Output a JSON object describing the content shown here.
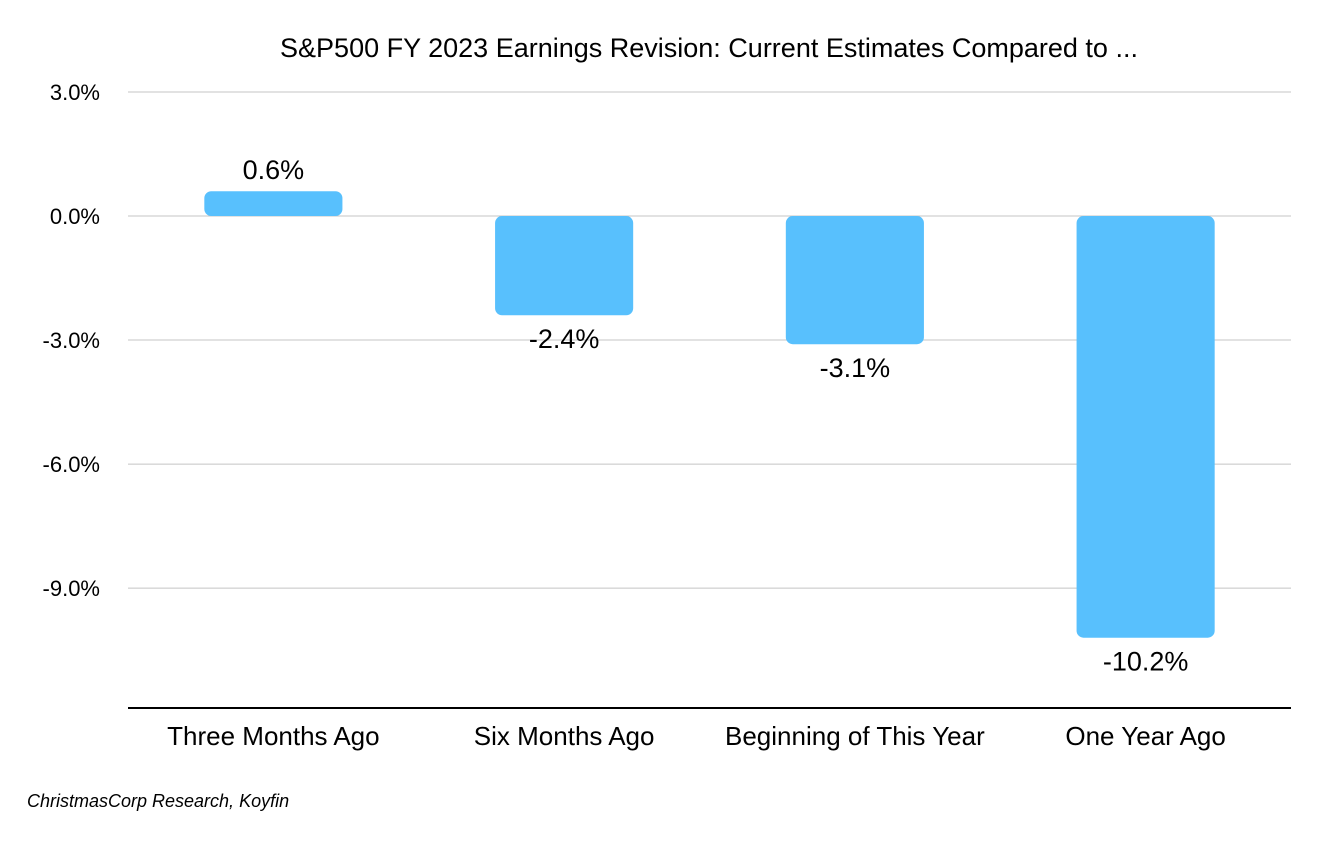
{
  "chart_data": {
    "type": "bar",
    "title": "S&P500 FY 2023 Earnings Revision: Current Estimates Compared to ...",
    "categories": [
      "Three Months Ago",
      "Six Months Ago",
      "Beginning of This Year",
      "One Year Ago"
    ],
    "values": [
      0.6,
      -2.4,
      -3.1,
      -10.2
    ],
    "data_labels": [
      "0.6%",
      "-2.4%",
      "-3.1%",
      "-10.2%"
    ],
    "y_ticks": [
      3.0,
      0.0,
      -3.0,
      -6.0,
      -9.0
    ],
    "y_tick_labels": [
      "3.0%",
      "0.0%",
      "-3.0%",
      "-6.0%",
      "-9.0%"
    ],
    "ylim": [
      -11.9,
      3.0
    ],
    "grid": true,
    "legend": "none",
    "bar_color": "#58c0fd"
  },
  "source_note": "ChristmasCorp Research, Koyfin"
}
